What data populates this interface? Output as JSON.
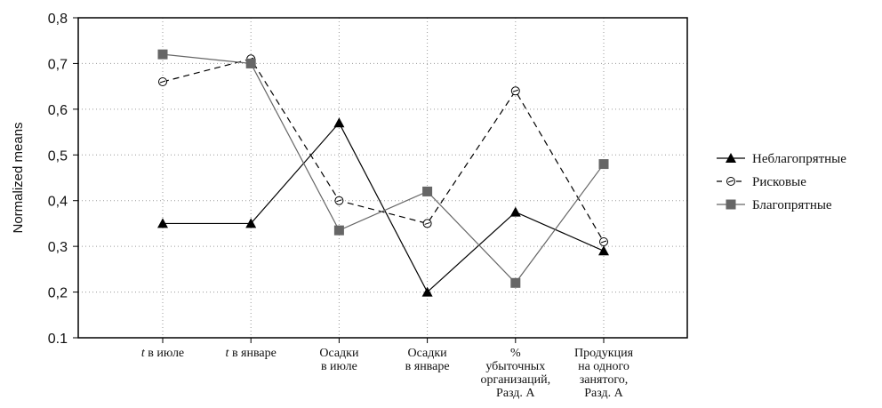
{
  "chart_data": {
    "type": "line",
    "ylabel": "Normalized means",
    "xlabel": "",
    "ylim": [
      0.1,
      0.8
    ],
    "yticks": [
      "0.1",
      "0,2",
      "0,3",
      "0,4",
      "0,5",
      "0,6",
      "0,7",
      "0,8"
    ],
    "grid": true,
    "legend_position": "right",
    "categories": [
      {
        "italic": "t",
        "rest": " в июле",
        "lines": []
      },
      {
        "italic": "t",
        "rest": " в январе",
        "lines": []
      },
      {
        "italic": "",
        "rest": "",
        "lines": [
          "Осадки",
          "в июле"
        ]
      },
      {
        "italic": "",
        "rest": "",
        "lines": [
          "Осадки",
          "в январе"
        ]
      },
      {
        "italic": "",
        "rest": "",
        "lines": [
          "%",
          "убыточных",
          "организаций,",
          "Разд. А"
        ]
      },
      {
        "italic": "",
        "rest": "",
        "lines": [
          "Продукция",
          "на одного",
          "занятого,",
          "Разд. А"
        ]
      }
    ],
    "series": [
      {
        "name": "Неблагопрятные",
        "marker": "triangle",
        "line": "solid",
        "color": "#000000",
        "values": [
          0.35,
          0.35,
          0.57,
          0.2,
          0.375,
          0.29
        ]
      },
      {
        "name": "Рисковые",
        "marker": "circle",
        "line": "dashed",
        "color": "#000000",
        "values": [
          0.66,
          0.71,
          0.4,
          0.35,
          0.64,
          0.31
        ]
      },
      {
        "name": "Благопрятные",
        "marker": "square",
        "line": "solid",
        "color": "#666666",
        "values": [
          0.72,
          0.7,
          0.335,
          0.42,
          0.22,
          0.48
        ]
      }
    ]
  }
}
